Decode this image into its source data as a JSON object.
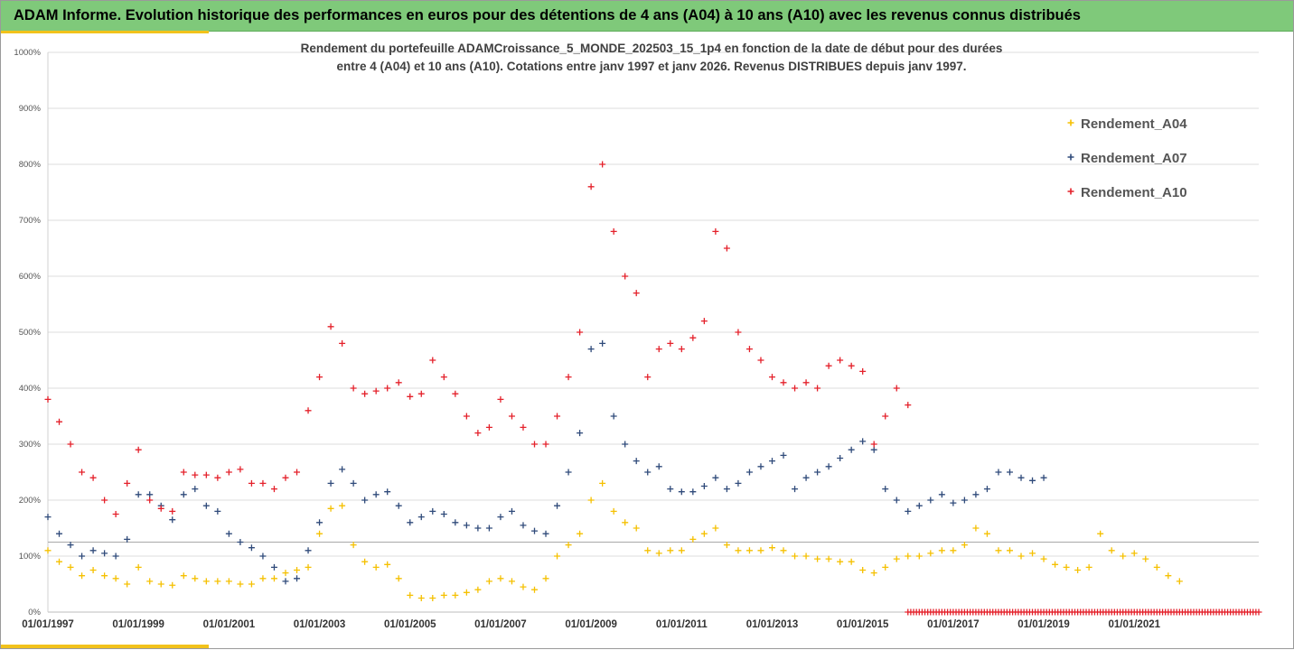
{
  "banner": {
    "title": "ADAM Informe. Evolution historique des performances en euros pour des détentions de 4 ans (A04) à 10 ans (A10) avec les revenus connus distribués"
  },
  "chart_data": {
    "type": "scatter",
    "title_line1": "Rendement du portefeuille ADAMCroissance_5_MONDE_202503_15_1p4  en fonction de la date de début pour des durées",
    "title_line2": "entre 4 (A04) et 10 ans (A10). Cotations entre janv 1997 et janv 2026. Revenus DISTRIBUES depuis janv 1997.",
    "x_ticks": [
      "01/01/1997",
      "01/01/1999",
      "01/01/2001",
      "01/01/2003",
      "01/01/2005",
      "01/01/2007",
      "01/01/2009",
      "01/01/2011",
      "01/01/2013",
      "01/01/2015",
      "01/01/2017",
      "01/01/2019",
      "01/01/2021"
    ],
    "y_ticks": [
      "0%",
      "100%",
      "200%",
      "300%",
      "400%",
      "500%",
      "600%",
      "700%",
      "800%",
      "900%",
      "1000%"
    ],
    "x_range": [
      1997.0,
      2023.75
    ],
    "y_range": [
      0,
      1000
    ],
    "grid": "horizontal",
    "legend_position": "right",
    "reference_line_y": 125,
    "series": [
      {
        "name": "Rendement_A04",
        "color": "#f5c000",
        "x": [
          1997.0,
          1997.25,
          1997.5,
          1997.75,
          1998.0,
          1998.25,
          1998.5,
          1998.75,
          1999.0,
          1999.25,
          1999.5,
          1999.75,
          2000.0,
          2000.25,
          2000.5,
          2000.75,
          2001.0,
          2001.25,
          2001.5,
          2001.75,
          2002.0,
          2002.25,
          2002.5,
          2002.75,
          2003.0,
          2003.25,
          2003.5,
          2003.75,
          2004.0,
          2004.25,
          2004.5,
          2004.75,
          2005.0,
          2005.25,
          2005.5,
          2005.75,
          2006.0,
          2006.25,
          2006.5,
          2006.75,
          2007.0,
          2007.25,
          2007.5,
          2007.75,
          2008.0,
          2008.25,
          2008.5,
          2008.75,
          2009.0,
          2009.25,
          2009.5,
          2009.75,
          2010.0,
          2010.25,
          2010.5,
          2010.75,
          2011.0,
          2011.25,
          2011.5,
          2011.75,
          2012.0,
          2012.25,
          2012.5,
          2012.75,
          2013.0,
          2013.25,
          2013.5,
          2013.75,
          2014.0,
          2014.25,
          2014.5,
          2014.75,
          2015.0,
          2015.25,
          2015.5,
          2015.75,
          2016.0,
          2016.25,
          2016.5,
          2016.75,
          2017.0,
          2017.25,
          2017.5,
          2017.75,
          2018.0,
          2018.25,
          2018.5,
          2018.75,
          2019.0,
          2019.25,
          2019.5,
          2019.75,
          2020.0,
          2020.25,
          2020.5,
          2020.75,
          2021.0,
          2021.25,
          2021.5,
          2021.75,
          2022.0
        ],
        "y": [
          110,
          90,
          80,
          65,
          75,
          65,
          60,
          50,
          80,
          55,
          50,
          48,
          65,
          60,
          55,
          55,
          55,
          50,
          50,
          60,
          60,
          70,
          75,
          80,
          140,
          185,
          190,
          120,
          90,
          80,
          85,
          60,
          30,
          25,
          25,
          30,
          30,
          35,
          40,
          55,
          60,
          55,
          45,
          40,
          60,
          100,
          120,
          140,
          200,
          230,
          180,
          160,
          150,
          110,
          105,
          110,
          110,
          130,
          140,
          150,
          120,
          110,
          110,
          110,
          115,
          110,
          100,
          100,
          95,
          95,
          90,
          90,
          75,
          70,
          80,
          95,
          100,
          100,
          105,
          110,
          110,
          120,
          150,
          140,
          110,
          110,
          100,
          105,
          95,
          85,
          80,
          75,
          80,
          140,
          110,
          100,
          105,
          95,
          80,
          65,
          55
        ]
      },
      {
        "name": "Rendement_A07",
        "color": "#2f4a7a",
        "x": [
          1997.0,
          1997.25,
          1997.5,
          1997.75,
          1998.0,
          1998.25,
          1998.5,
          1998.75,
          1999.0,
          1999.25,
          1999.5,
          1999.75,
          2000.0,
          2000.25,
          2000.5,
          2000.75,
          2001.0,
          2001.25,
          2001.5,
          2001.75,
          2002.0,
          2002.25,
          2002.5,
          2002.75,
          2003.0,
          2003.25,
          2003.5,
          2003.75,
          2004.0,
          2004.25,
          2004.5,
          2004.75,
          2005.0,
          2005.25,
          2005.5,
          2005.75,
          2006.0,
          2006.25,
          2006.5,
          2006.75,
          2007.0,
          2007.25,
          2007.5,
          2007.75,
          2008.0,
          2008.25,
          2008.5,
          2008.75,
          2009.0,
          2009.25,
          2009.5,
          2009.75,
          2010.0,
          2010.25,
          2010.5,
          2010.75,
          2011.0,
          2011.25,
          2011.5,
          2011.75,
          2012.0,
          2012.25,
          2012.5,
          2012.75,
          2013.0,
          2013.25,
          2013.5,
          2013.75,
          2014.0,
          2014.25,
          2014.5,
          2014.75,
          2015.0,
          2015.25,
          2015.5,
          2015.75,
          2016.0,
          2016.25,
          2016.5,
          2016.75,
          2017.0,
          2017.25,
          2017.5,
          2017.75,
          2018.0,
          2018.25,
          2018.5,
          2018.75,
          2019.0
        ],
        "y": [
          170,
          140,
          120,
          100,
          110,
          105,
          100,
          130,
          210,
          210,
          190,
          165,
          210,
          220,
          190,
          180,
          140,
          125,
          115,
          100,
          80,
          55,
          60,
          110,
          160,
          230,
          255,
          230,
          200,
          210,
          215,
          190,
          160,
          170,
          180,
          175,
          160,
          155,
          150,
          150,
          170,
          180,
          155,
          145,
          140,
          190,
          250,
          320,
          470,
          480,
          350,
          300,
          270,
          250,
          260,
          220,
          215,
          215,
          225,
          240,
          220,
          230,
          250,
          260,
          270,
          280,
          220,
          240,
          250,
          260,
          275,
          290,
          305,
          290,
          220,
          200,
          180,
          190,
          200,
          210,
          195,
          200,
          210,
          220,
          250,
          250,
          240,
          235,
          240
        ]
      },
      {
        "name": "Rendement_A10",
        "color": "#e4202a",
        "x": [
          1997.0,
          1997.25,
          1997.5,
          1997.75,
          1998.0,
          1998.25,
          1998.5,
          1998.75,
          1999.0,
          1999.25,
          1999.5,
          1999.75,
          2000.0,
          2000.25,
          2000.5,
          2000.75,
          2001.0,
          2001.25,
          2001.5,
          2001.75,
          2002.0,
          2002.25,
          2002.5,
          2002.75,
          2003.0,
          2003.25,
          2003.5,
          2003.75,
          2004.0,
          2004.25,
          2004.5,
          2004.75,
          2005.0,
          2005.25,
          2005.5,
          2005.75,
          2006.0,
          2006.25,
          2006.5,
          2006.75,
          2007.0,
          2007.25,
          2007.5,
          2007.75,
          2008.0,
          2008.25,
          2008.5,
          2008.75,
          2009.0,
          2009.25,
          2009.5,
          2009.75,
          2010.0,
          2010.25,
          2010.5,
          2010.75,
          2011.0,
          2011.25,
          2011.5,
          2011.75,
          2012.0,
          2012.25,
          2012.5,
          2012.75,
          2013.0,
          2013.25,
          2013.5,
          2013.75,
          2014.0,
          2014.25,
          2014.5,
          2014.75,
          2015.0,
          2015.25,
          2015.5,
          2015.75,
          2016.0
        ],
        "y": [
          380,
          340,
          300,
          250,
          240,
          200,
          175,
          230,
          290,
          200,
          185,
          180,
          250,
          245,
          245,
          240,
          250,
          255,
          230,
          230,
          220,
          240,
          250,
          360,
          420,
          510,
          480,
          400,
          390,
          395,
          400,
          410,
          385,
          390,
          450,
          420,
          390,
          350,
          320,
          330,
          380,
          350,
          330,
          300,
          300,
          350,
          420,
          500,
          760,
          800,
          680,
          600,
          570,
          420,
          470,
          480,
          470,
          490,
          520,
          680,
          650,
          500,
          470,
          450,
          420,
          410,
          400,
          410,
          400,
          440,
          450,
          440,
          430,
          300,
          350,
          400,
          370
        ]
      }
    ],
    "zero_band": {
      "color": "#e4202a",
      "x_start": 2016.0,
      "x_end": 2023.75,
      "y": 0
    }
  }
}
